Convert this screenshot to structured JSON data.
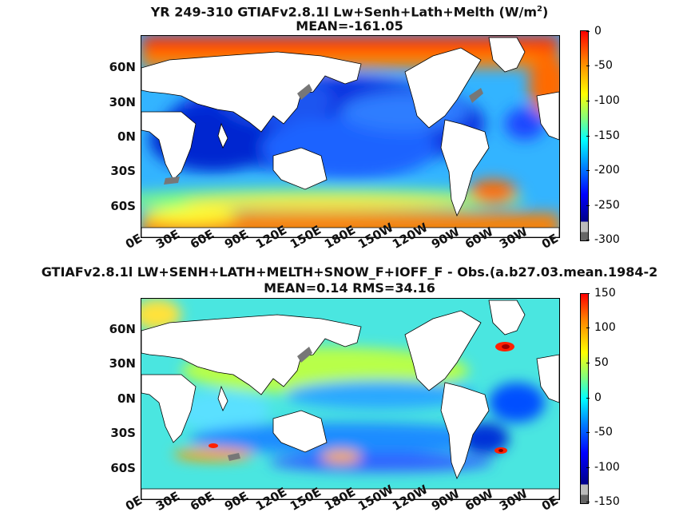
{
  "panel1": {
    "title_main": "YR 249-310 GTIAFv2.8.1l Lw+Senh+Lath+Melth (W/m",
    "title_sup": "2",
    "title_close": ")",
    "subtitle": "MEAN=-161.05",
    "colorbar_ticks": [
      "0",
      "-50",
      "-100",
      "-150",
      "-200",
      "-250",
      "-300"
    ]
  },
  "panel2": {
    "title_main": "GTIAFv2.8.1l LW+SENH+LATH+MELTH+SNOW_F+IOFF_F - Obs.(a.b27.03.mean.1984-2",
    "subtitle": "MEAN=0.14 RMS=34.16",
    "colorbar_ticks": [
      "150",
      "100",
      "50",
      "0",
      "-50",
      "-100",
      "-150"
    ]
  },
  "y_tick_labels": [
    "60N",
    "30N",
    "0N",
    "30S",
    "60S"
  ],
  "x_tick_labels": [
    "0E",
    "30E",
    "60E",
    "90E",
    "120E",
    "150E",
    "180E",
    "150W",
    "120W",
    "90W",
    "60W",
    "30W",
    "0E"
  ],
  "colors": {
    "land": "#ffffff",
    "missing": "#777777",
    "jet_scale": [
      "#00008f",
      "#0000ff",
      "#0080ff",
      "#00ffff",
      "#80ff80",
      "#ffff00",
      "#ff8000",
      "#ff0000",
      "#800000"
    ]
  }
}
